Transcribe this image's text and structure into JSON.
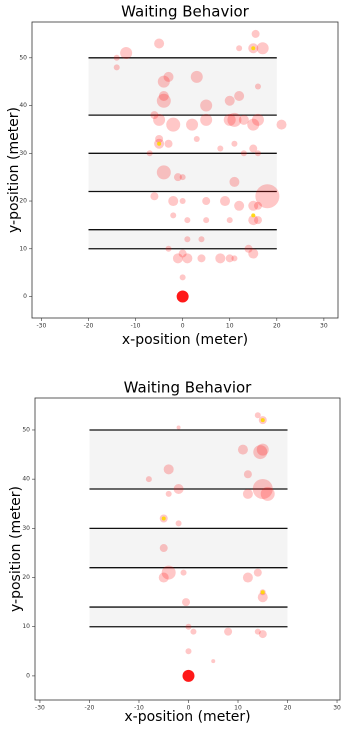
{
  "chart_data": [
    {
      "type": "scatter",
      "title": "Waiting Behavior",
      "x_label": "x-position (meter)",
      "y_label": "y-position (meter)",
      "xlim": [
        -32,
        33
      ],
      "ylim": [
        -4.5,
        57.5
      ],
      "xticks": [
        -30,
        -20,
        -10,
        0,
        10,
        20,
        30
      ],
      "yticks": [
        0,
        10,
        20,
        30,
        40,
        50
      ],
      "bands": [
        {
          "x": [
            -20,
            20
          ],
          "y": [
            38,
            50
          ]
        },
        {
          "x": [
            -20,
            20
          ],
          "y": [
            22,
            30
          ]
        },
        {
          "x": [
            -20,
            20
          ],
          "y": [
            10,
            14
          ]
        }
      ],
      "series": [
        {
          "color": "#ff0000",
          "opacity": 0.22,
          "x": [
            15,
            17,
            15.5,
            -12,
            -5,
            -14,
            -14,
            12,
            -4,
            -3,
            3,
            -4,
            -4,
            5,
            10,
            12,
            16,
            -6,
            -5,
            -2,
            2,
            5,
            10,
            11,
            13,
            15,
            16,
            21,
            -5,
            -5,
            -3,
            3,
            8,
            11,
            15,
            16,
            13,
            -7,
            -4,
            -1,
            0,
            11,
            -6,
            -2,
            0,
            5,
            9,
            12,
            15,
            16,
            18,
            -2,
            1,
            5,
            10,
            15,
            16,
            1,
            4,
            0,
            -1,
            1,
            4,
            8,
            10,
            11,
            15,
            14,
            0,
            -3
          ],
          "values": [
            52,
            52,
            55,
            51,
            53,
            48,
            50,
            52,
            45,
            46,
            46,
            41,
            42,
            40,
            41,
            42,
            44,
            38,
            37,
            36,
            36,
            37,
            37,
            37,
            37,
            36,
            37,
            36,
            33,
            32,
            32,
            33,
            31,
            32,
            31,
            30,
            30,
            30,
            26,
            25,
            25,
            24,
            21,
            20,
            20,
            20,
            20,
            19,
            19,
            19,
            21,
            17,
            16,
            16,
            16,
            16,
            16,
            12,
            12,
            9,
            8,
            8,
            8,
            8,
            8,
            8,
            9,
            10,
            4,
            10
          ],
          "sizes": [
            5,
            6,
            4,
            6,
            5,
            3,
            3,
            3,
            6,
            5,
            6,
            7,
            5,
            6,
            5,
            5,
            3,
            4,
            6,
            7,
            6,
            6,
            6,
            7,
            5,
            6,
            6,
            5,
            4,
            5,
            4,
            3,
            3,
            3,
            4,
            3,
            3,
            3,
            7,
            4,
            3,
            5,
            4,
            5,
            3,
            4,
            5,
            5,
            5,
            4,
            12,
            3,
            3,
            3,
            3,
            5,
            4,
            3,
            3,
            4,
            5,
            5,
            4,
            5,
            4,
            3,
            5,
            4,
            3,
            3
          ]
        },
        {
          "color": "#ff0000",
          "opacity": 0.9,
          "x": [
            0
          ],
          "values": [
            0
          ],
          "sizes": [
            6
          ]
        },
        {
          "color": "#ffd700",
          "opacity": 0.9,
          "x": [
            15,
            -5,
            15
          ],
          "values": [
            52,
            32,
            17
          ],
          "sizes": [
            2,
            2,
            2
          ]
        }
      ]
    },
    {
      "type": "scatter",
      "title": "Waiting Behavior",
      "x_label": "x-position (meter)",
      "y_label": "y-position (meter)",
      "xlim": [
        -31,
        30.6
      ],
      "ylim": [
        -4.9,
        56.5
      ],
      "xticks": [
        -30,
        -20,
        -10,
        0,
        10,
        20,
        30
      ],
      "yticks": [
        0,
        10,
        20,
        30,
        40,
        50
      ],
      "bands": [
        {
          "x": [
            -20,
            20
          ],
          "y": [
            38,
            50
          ]
        },
        {
          "x": [
            -20,
            20
          ],
          "y": [
            22,
            30
          ]
        },
        {
          "x": [
            -20,
            20
          ],
          "y": [
            10,
            14
          ]
        }
      ],
      "series": [
        {
          "color": "#ff0000",
          "opacity": 0.22,
          "x": [
            -2,
            14,
            15,
            15,
            14.5,
            11,
            -4,
            12,
            -8,
            -2,
            -4,
            12,
            15,
            16,
            -5,
            -2,
            -5,
            -4,
            -5,
            -1,
            12,
            14,
            15,
            15,
            -0.5,
            0,
            1,
            8,
            14,
            15,
            0,
            5
          ],
          "values": [
            50.5,
            53,
            52,
            46,
            45.5,
            46,
            42,
            41,
            40,
            38,
            37,
            37,
            38,
            37,
            32,
            31,
            26,
            21,
            20,
            21,
            20,
            21,
            16,
            17,
            15,
            10,
            9,
            9,
            9,
            8.5,
            5,
            3
          ],
          "sizes": [
            2,
            3,
            4,
            6,
            7,
            5,
            5,
            4,
            3,
            5,
            3,
            5,
            10,
            7,
            4,
            3,
            4,
            7,
            5,
            3,
            5,
            4,
            5,
            3,
            4,
            3,
            3,
            4,
            3,
            4,
            3,
            2
          ]
        },
        {
          "color": "#ff0000",
          "opacity": 0.9,
          "x": [
            0
          ],
          "values": [
            0
          ],
          "sizes": [
            6
          ]
        },
        {
          "color": "#ffd700",
          "opacity": 0.9,
          "x": [
            15,
            -5,
            15
          ],
          "values": [
            52,
            32,
            17
          ],
          "sizes": [
            2,
            2,
            2
          ]
        }
      ]
    }
  ]
}
